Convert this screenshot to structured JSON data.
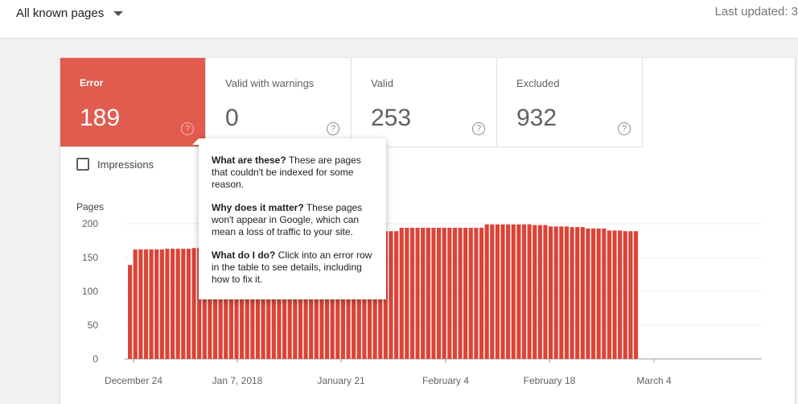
{
  "header": {
    "filter_label": "All known pages",
    "last_updated": "Last updated: 3"
  },
  "stats": [
    {
      "label": "Error",
      "value": "189",
      "help": "?"
    },
    {
      "label": "Valid with warnings",
      "value": "0",
      "help": "?"
    },
    {
      "label": "Valid",
      "value": "253",
      "help": "?"
    },
    {
      "label": "Excluded",
      "value": "932",
      "help": "?"
    }
  ],
  "colors": {
    "error": "#e15b4f",
    "bar": "#db4437"
  },
  "controls": {
    "impressions_label": "Impressions",
    "impressions_checked": false
  },
  "tooltip": {
    "q1_bold": "What are these?",
    "q1_text": " These are pages that couldn't be indexed for some reason.",
    "q2_bold": "Why does it matter?",
    "q2_text": " These pages won't appear in Google, which can mean a loss of traffic to your site.",
    "q3_bold": "What do I do?",
    "q3_text": " Click into an error row in the table to see details, including how to fix it."
  },
  "chart_data": {
    "type": "bar",
    "title": "",
    "ylabel": "Pages",
    "xlabel": "",
    "ylim": [
      0,
      200
    ],
    "yticks": [
      0,
      50,
      100,
      150,
      200
    ],
    "x_tick_labels": [
      "December 24",
      "Jan 7, 2018",
      "January 21",
      "February 4",
      "February 18",
      "March 4"
    ],
    "series": [
      {
        "name": "Error",
        "values": [
          139,
          162,
          162,
          162,
          162,
          162,
          162,
          163,
          163,
          163,
          163,
          163,
          164,
          164,
          164,
          164,
          165,
          165,
          166,
          166,
          167,
          167,
          169,
          170,
          172,
          174,
          176,
          178,
          179,
          180,
          181,
          181,
          181,
          181,
          181,
          181,
          181,
          181,
          181,
          181,
          181,
          189,
          189,
          189,
          189,
          189,
          189,
          189,
          189,
          189,
          189,
          194,
          194,
          194,
          194,
          194,
          194,
          194,
          194,
          194,
          194,
          194,
          194,
          194,
          194,
          194,
          194,
          199,
          199,
          199,
          199,
          199,
          199,
          199,
          199,
          199,
          198,
          198,
          198,
          196,
          196,
          196,
          196,
          195,
          195,
          195,
          193,
          193,
          193,
          193,
          190,
          190,
          190,
          189,
          189,
          189
        ]
      }
    ]
  }
}
